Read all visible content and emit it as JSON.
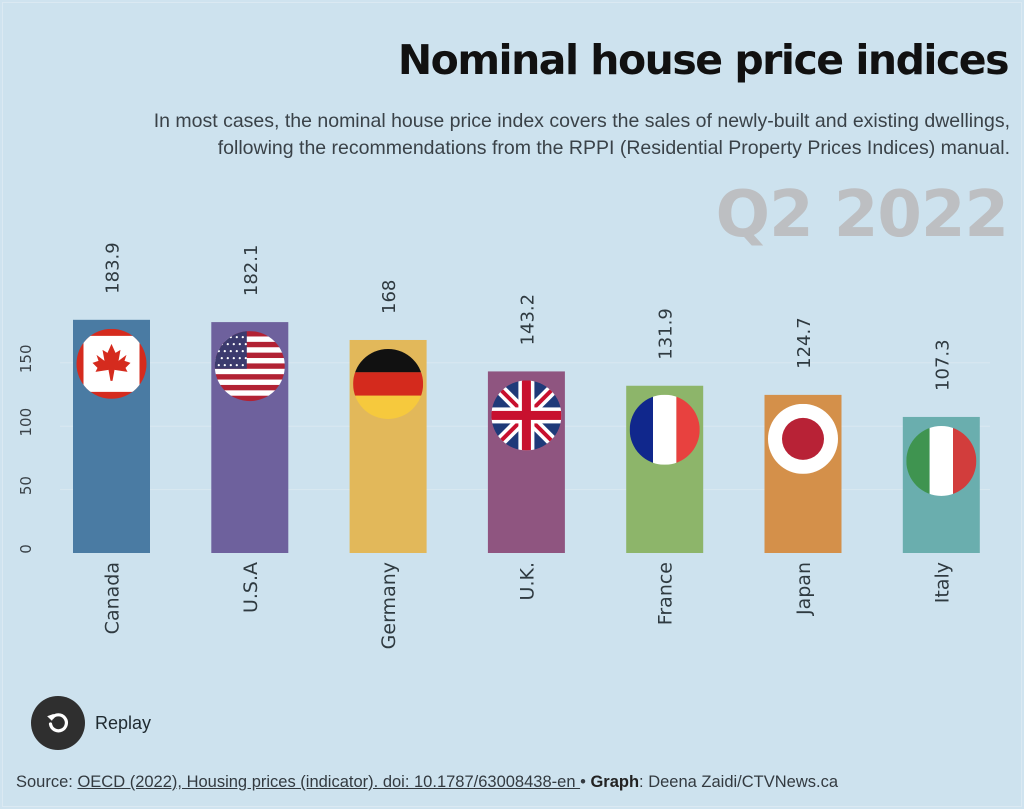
{
  "header": {
    "title": "Nominal house price indices",
    "subtitle_line1": "In most cases, the nominal house price index covers the sales of newly-built and existing dwellings,",
    "subtitle_line2": "following the recommendations from the RPPI (Residential Property Prices Indices) manual.",
    "period": "Q2 2022"
  },
  "chart_data": {
    "type": "bar",
    "title": "Nominal house price indices",
    "subtitle": "Q2 2022",
    "xlabel": "",
    "ylabel": "",
    "categories": [
      "Canada",
      "U.S.A",
      "Germany",
      "U.K.",
      "France",
      "Japan",
      "Italy"
    ],
    "values": [
      183.9,
      182.1,
      168,
      143.2,
      131.9,
      124.7,
      107.3
    ],
    "value_labels": [
      "183.9",
      "182.1",
      "168",
      "143.2",
      "131.9",
      "124.7",
      "107.3"
    ],
    "colors": [
      "#4a7ba3",
      "#6e619d",
      "#e2b85a",
      "#8f5580",
      "#8db56a",
      "#d4904a",
      "#6aaeae"
    ],
    "flags": [
      "canada-flag-icon",
      "usa-flag-icon",
      "germany-flag-icon",
      "uk-flag-icon",
      "france-flag-icon",
      "japan-flag-icon",
      "italy-flag-icon"
    ],
    "yticks": [
      0,
      50,
      100,
      150
    ],
    "ylim": [
      0,
      185
    ],
    "grid": true,
    "legend": "none"
  },
  "controls": {
    "replay_label": "Replay",
    "replay_icon": "replay-icon"
  },
  "footer": {
    "source_prefix": "Source: ",
    "source_link": "OECD (2022), Housing prices (indicator). doi: 10.1787/63008438-en ",
    "separator": "• ",
    "graph_label": "Graph",
    "graph_credit": ": Deena Zaidi/CTVNews.ca"
  }
}
